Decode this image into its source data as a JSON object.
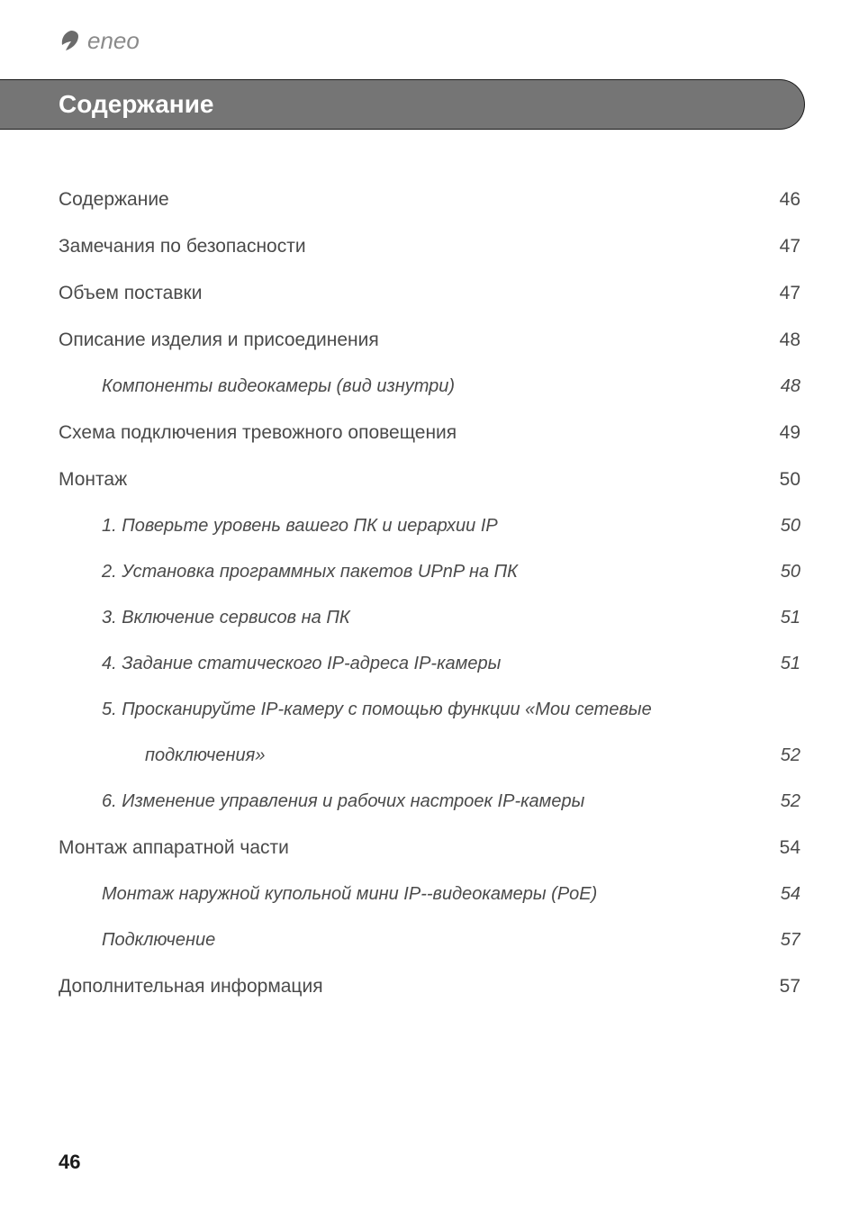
{
  "logo": {
    "brand_text": "eneo"
  },
  "header": {
    "title": "Содержание"
  },
  "toc": {
    "entries": [
      {
        "level": 1,
        "label": "Содержание",
        "page": "46"
      },
      {
        "level": 1,
        "label": "Замечания по безопасности",
        "page": "47"
      },
      {
        "level": 1,
        "label": "Объем поставки",
        "page": "47"
      },
      {
        "level": 1,
        "label": "Описание изделия и присоединения",
        "page": "48"
      },
      {
        "level": 2,
        "label": "Компоненты видеокамеры (вид изнутри)",
        "page": "48"
      },
      {
        "level": 1,
        "label": "Схема подключения тревожного оповещения ",
        "page": "49"
      },
      {
        "level": 1,
        "label": "Монтаж",
        "page": "50"
      },
      {
        "level": 2,
        "label": "1. Поверьте уровень вашего ПК и иерархии IP",
        "page": "50"
      },
      {
        "level": 2,
        "label": "2. Установка программных пакетов UPnP на ПК",
        "page": "50"
      },
      {
        "level": 2,
        "label": "3. Включение сервисов на ПК ",
        "page": "51"
      },
      {
        "level": 2,
        "label": "4. Задание статического IP-адреса IP-камеры",
        "page": "51"
      },
      {
        "level": 2,
        "label": "5. Просканируйте IP-камеру с помощью функции «Мои сетевые",
        "continued": true
      },
      {
        "level": 3,
        "label": "подключения» ",
        "page": "52"
      },
      {
        "level": 2,
        "label": "6. Изменение управления и рабочих настроек IP-камеры",
        "page": "52"
      },
      {
        "level": 1,
        "label": "Монтаж аппаратной части",
        "page": "54"
      },
      {
        "level": 2,
        "label": "Монтаж наружной купольной мини IP--видеокамеры (PoE)",
        "page": "54"
      },
      {
        "level": 2,
        "label": "Подключение ",
        "page": "57"
      },
      {
        "level": 1,
        "label": "Дополнительная информация ",
        "page": "57"
      }
    ]
  },
  "page_number": "46",
  "colors": {
    "header_bg": "#757575",
    "header_text": "#ffffff",
    "body_text": "#4a4a4a",
    "logo_text": "#8a8a8a",
    "page_num": "#1a1a1a",
    "logo_shape": "#6b6b6b"
  },
  "typography": {
    "header_fontsize": 28,
    "level1_fontsize": 21,
    "level2_fontsize": 20,
    "pagenum_fontsize": 22
  }
}
